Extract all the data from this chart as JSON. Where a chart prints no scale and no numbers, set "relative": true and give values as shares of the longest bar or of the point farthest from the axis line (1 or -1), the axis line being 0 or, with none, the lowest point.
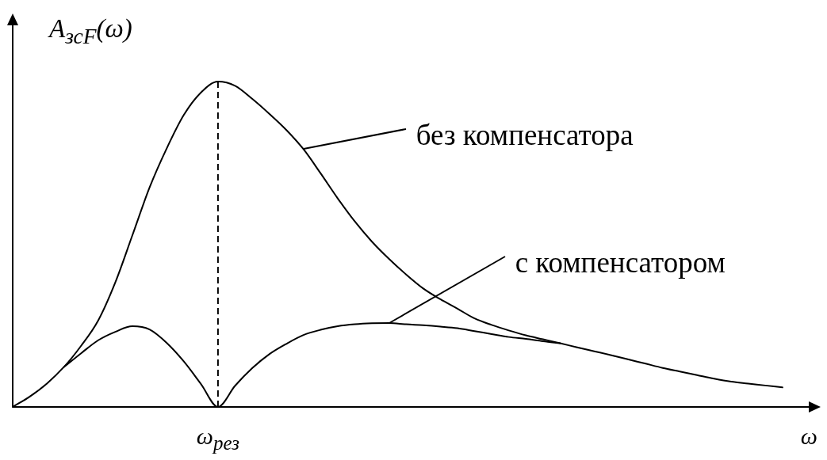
{
  "chart_data": {
    "type": "line",
    "relative": true,
    "xlabel": "ω",
    "ylabel": "A$_{зсF}$(ω)",
    "categories": [
      null,
      null,
      null,
      null,
      null,
      null,
      null,
      null,
      null,
      null,
      null,
      null,
      null,
      null,
      null,
      null,
      null,
      null,
      null,
      null,
      null,
      null,
      null,
      null,
      null,
      null,
      null,
      null,
      null,
      null,
      null,
      null,
      null,
      null,
      null,
      null,
      null,
      null,
      null,
      null,
      null,
      null,
      null,
      null,
      null,
      null,
      null,
      null
    ],
    "series": [
      {
        "name": "без компенсатора",
        "color": "#000000",
        "values": [
          0,
          0.032,
          0.072,
          0.123,
          0.188,
          0.266,
          0.383,
          0.528,
          0.674,
          0.794,
          0.897,
          0.966,
          1,
          0.987,
          0.947,
          0.901,
          0.851,
          0.792,
          0.718,
          0.641,
          0.57,
          0.508,
          0.455,
          0.407,
          0.364,
          0.331,
          0.302,
          0.272,
          0.252,
          0.235,
          0.22,
          0.208,
          0.196,
          0.183,
          0.171,
          0.159,
          0.146,
          0.133,
          0.12,
          0.109,
          0.098,
          0.087,
          0.078,
          0.072,
          0.066,
          0.06,
          null,
          null
        ]
      },
      {
        "name": "с компенсатором",
        "color": "#000000",
        "values": [
          null,
          null,
          null,
          0.123,
          0.165,
          0.205,
          0.231,
          0.248,
          0.238,
          0.197,
          0.14,
          0.071,
          0,
          0.065,
          0.119,
          0.162,
          0.194,
          0.221,
          0.237,
          0.248,
          0.254,
          0.257,
          0.258,
          0.254,
          0.251,
          0.247,
          0.242,
          0.233,
          0.224,
          0.215,
          0.209,
          0.202,
          0.196,
          null,
          null,
          null,
          null,
          null,
          null,
          null,
          null,
          null,
          null,
          null,
          null,
          null,
          null,
          null
        ]
      }
    ],
    "ref_lines": [
      {
        "axis": "x",
        "label": "ω$_{рез}$",
        "line_style": "dashed",
        "color": "#000000"
      }
    ],
    "marker": "none",
    "line_style": "solid"
  }
}
